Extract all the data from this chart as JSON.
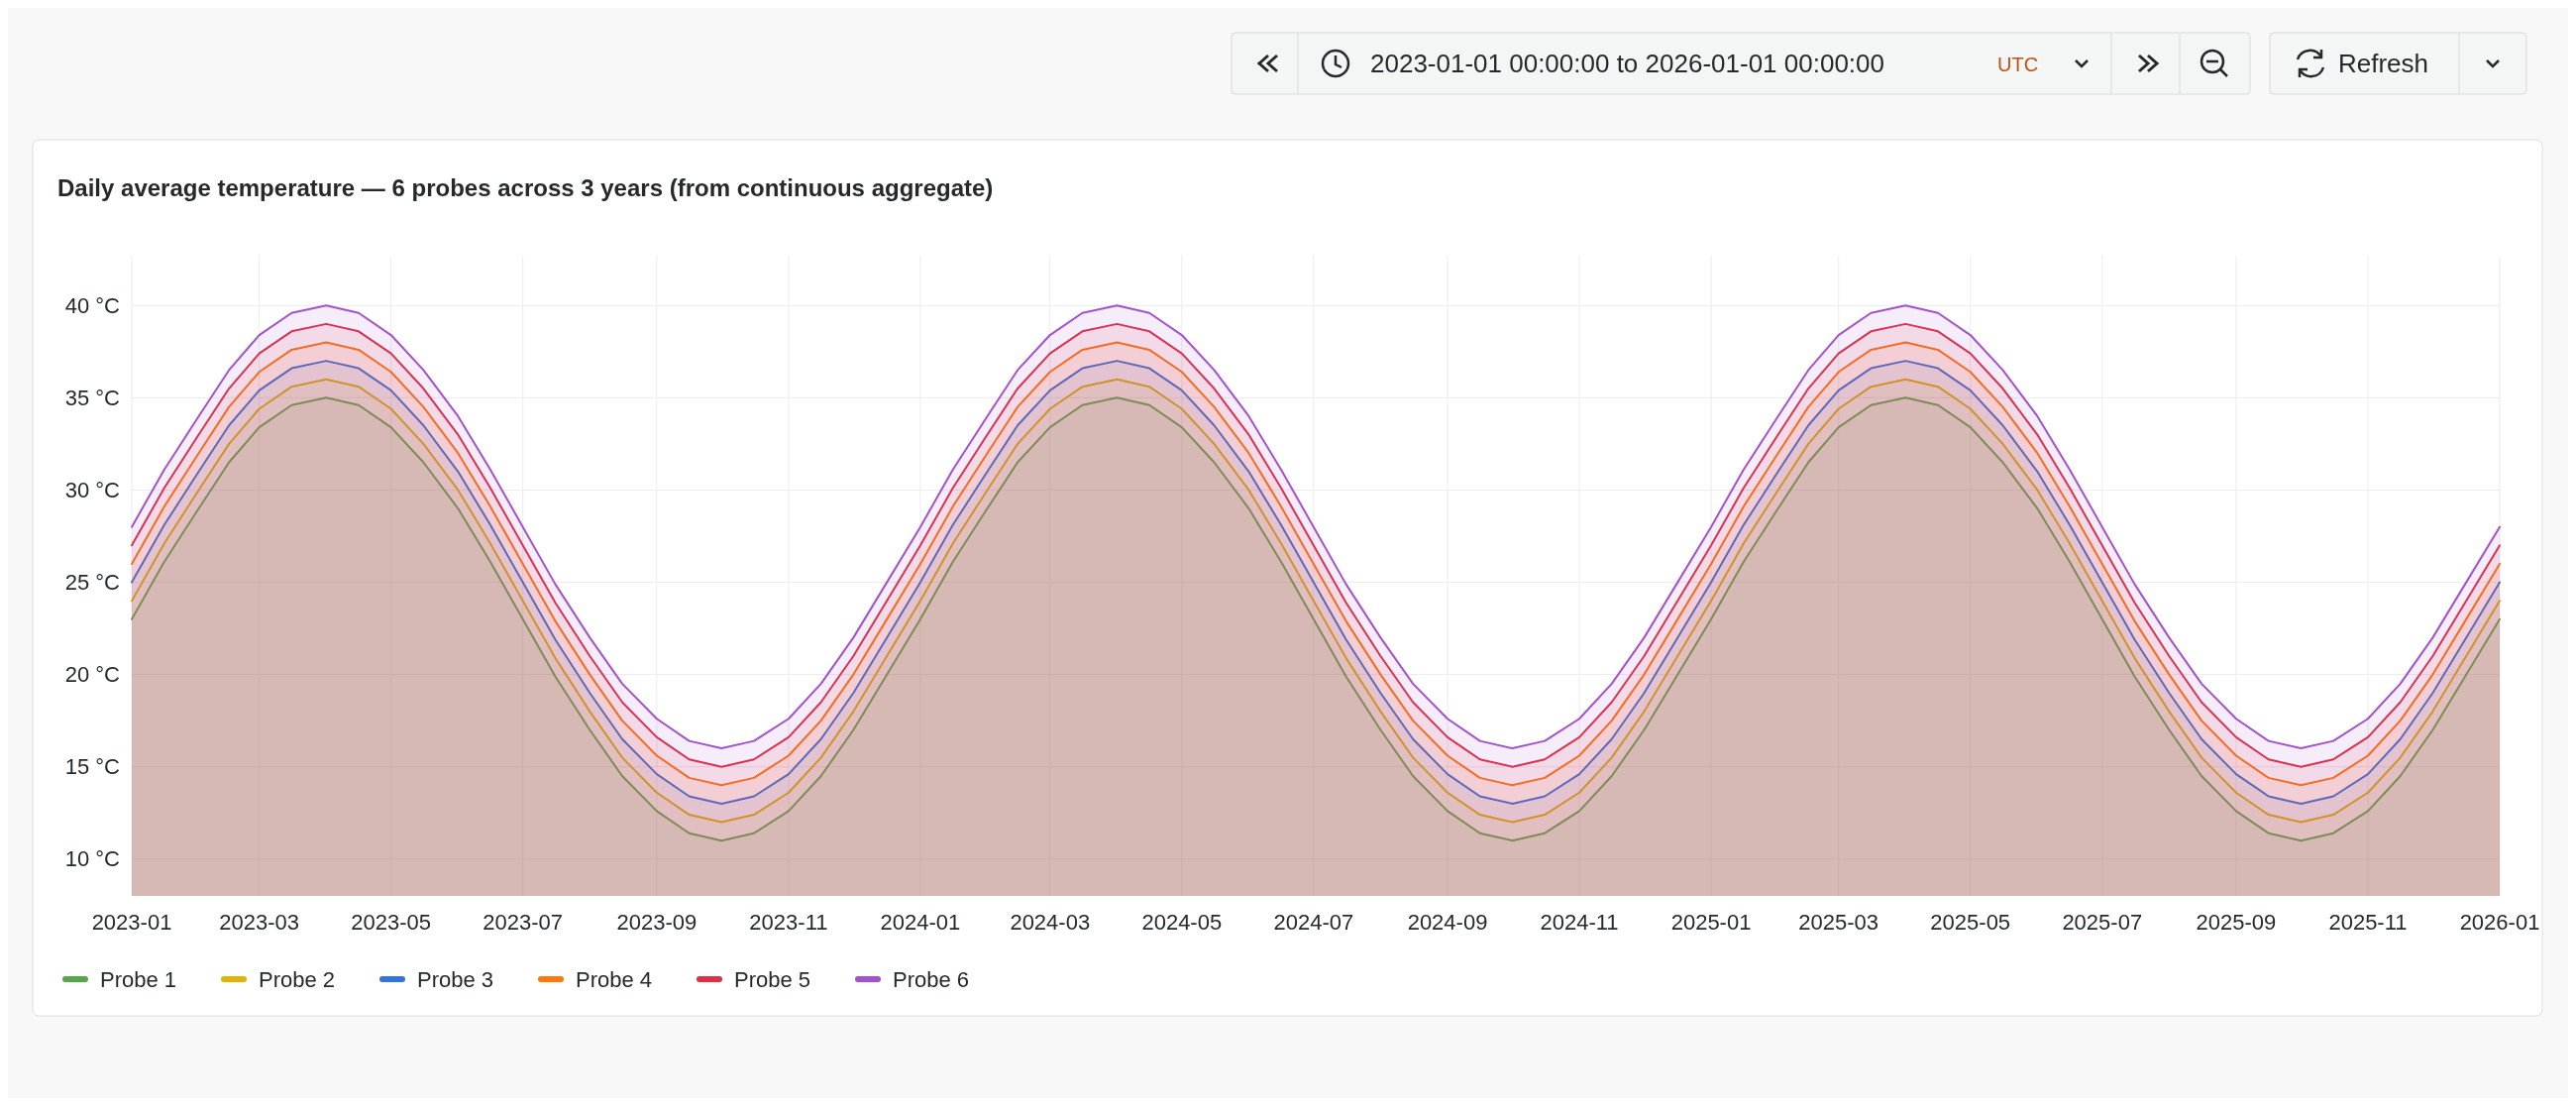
{
  "chart_data": {
    "type": "area",
    "title": "Daily average temperature — 6 probes across 3 years (from continuous aggregate)",
    "annotations": [
      "2023-01-01 00:00:00 to 2026-01-01 00:00:00",
      "UTC",
      "Refresh"
    ],
    "x": [
      "2023-01-01",
      "2023-01-16",
      "2023-02-01",
      "2023-02-15",
      "2023-03-01",
      "2023-03-16",
      "2023-04-01",
      "2023-04-16",
      "2023-05-01",
      "2023-05-16",
      "2023-06-01",
      "2023-06-16",
      "2023-07-01",
      "2023-07-16",
      "2023-08-01",
      "2023-08-16",
      "2023-09-01",
      "2023-09-16",
      "2023-10-01",
      "2023-10-16",
      "2023-11-01",
      "2023-11-16",
      "2023-12-01",
      "2023-12-16",
      "2024-01-01",
      "2024-01-16",
      "2024-02-01",
      "2024-02-15",
      "2024-03-01",
      "2024-03-16",
      "2024-04-01",
      "2024-04-16",
      "2024-05-01",
      "2024-05-16",
      "2024-06-01",
      "2024-06-16",
      "2024-07-01",
      "2024-07-16",
      "2024-08-01",
      "2024-08-16",
      "2024-09-01",
      "2024-09-16",
      "2024-10-01",
      "2024-10-16",
      "2024-11-01",
      "2024-11-16",
      "2024-12-01",
      "2024-12-16",
      "2025-01-01",
      "2025-01-16",
      "2025-02-01",
      "2025-02-15",
      "2025-03-01",
      "2025-03-16",
      "2025-04-01",
      "2025-04-16",
      "2025-05-01",
      "2025-05-16",
      "2025-06-01",
      "2025-06-16",
      "2025-07-01",
      "2025-07-16",
      "2025-08-01",
      "2025-08-16",
      "2025-09-01",
      "2025-09-16",
      "2025-10-01",
      "2025-10-16",
      "2025-11-01",
      "2025-11-16",
      "2025-12-01",
      "2025-12-16",
      "2026-01-01"
    ],
    "series": [
      {
        "name": "Probe 1",
        "color": "#56a64b",
        "values": [
          23,
          26.1,
          29,
          31.5,
          33.4,
          34.6,
          35,
          34.6,
          33.4,
          31.5,
          29,
          26.1,
          23,
          19.9,
          17,
          14.5,
          12.6,
          11.4,
          11,
          11.4,
          12.6,
          14.5,
          17,
          19.9,
          23,
          26.1,
          29,
          31.5,
          33.4,
          34.6,
          35,
          34.6,
          33.4,
          31.5,
          29,
          26.1,
          23,
          19.9,
          17,
          14.5,
          12.6,
          11.4,
          11,
          11.4,
          12.6,
          14.5,
          17,
          19.9,
          23,
          26.1,
          29,
          31.5,
          33.4,
          34.6,
          35,
          34.6,
          33.4,
          31.5,
          29,
          26.1,
          23,
          19.9,
          17,
          14.5,
          12.6,
          11.4,
          11,
          11.4,
          12.6,
          14.5,
          17,
          19.9,
          23
        ]
      },
      {
        "name": "Probe 2",
        "color": "#e0b400",
        "values": [
          24,
          27.1,
          30,
          32.5,
          34.4,
          35.6,
          36,
          35.6,
          34.4,
          32.5,
          30,
          27.1,
          24,
          20.9,
          18,
          15.5,
          13.6,
          12.4,
          12,
          12.4,
          13.6,
          15.5,
          18,
          20.9,
          24,
          27.1,
          30,
          32.5,
          34.4,
          35.6,
          36,
          35.6,
          34.4,
          32.5,
          30,
          27.1,
          24,
          20.9,
          18,
          15.5,
          13.6,
          12.4,
          12,
          12.4,
          13.6,
          15.5,
          18,
          20.9,
          24,
          27.1,
          30,
          32.5,
          34.4,
          35.6,
          36,
          35.6,
          34.4,
          32.5,
          30,
          27.1,
          24,
          20.9,
          18,
          15.5,
          13.6,
          12.4,
          12,
          12.4,
          13.6,
          15.5,
          18,
          20.9,
          24
        ]
      },
      {
        "name": "Probe 3",
        "color": "#3274d9",
        "values": [
          25,
          28.1,
          31,
          33.5,
          35.4,
          36.6,
          37,
          36.6,
          35.4,
          33.5,
          31,
          28.1,
          25,
          21.9,
          19,
          16.5,
          14.6,
          13.4,
          13,
          13.4,
          14.6,
          16.5,
          19,
          21.9,
          25,
          28.1,
          31,
          33.5,
          35.4,
          36.6,
          37,
          36.6,
          35.4,
          33.5,
          31,
          28.1,
          25,
          21.9,
          19,
          16.5,
          14.6,
          13.4,
          13,
          13.4,
          14.6,
          16.5,
          19,
          21.9,
          25,
          28.1,
          31,
          33.5,
          35.4,
          36.6,
          37,
          36.6,
          35.4,
          33.5,
          31,
          28.1,
          25,
          21.9,
          19,
          16.5,
          14.6,
          13.4,
          13,
          13.4,
          14.6,
          16.5,
          19,
          21.9,
          25
        ]
      },
      {
        "name": "Probe 4",
        "color": "#ff780a",
        "values": [
          26,
          29.1,
          32,
          34.5,
          36.4,
          37.6,
          38,
          37.6,
          36.4,
          34.5,
          32,
          29.1,
          26,
          22.9,
          20,
          17.5,
          15.6,
          14.4,
          14,
          14.4,
          15.6,
          17.5,
          20,
          22.9,
          26,
          29.1,
          32,
          34.5,
          36.4,
          37.6,
          38,
          37.6,
          36.4,
          34.5,
          32,
          29.1,
          26,
          22.9,
          20,
          17.5,
          15.6,
          14.4,
          14,
          14.4,
          15.6,
          17.5,
          20,
          22.9,
          26,
          29.1,
          32,
          34.5,
          36.4,
          37.6,
          38,
          37.6,
          36.4,
          34.5,
          32,
          29.1,
          26,
          22.9,
          20,
          17.5,
          15.6,
          14.4,
          14,
          14.4,
          15.6,
          17.5,
          20,
          22.9,
          26
        ]
      },
      {
        "name": "Probe 5",
        "color": "#e02f44",
        "values": [
          27,
          30.1,
          33,
          35.5,
          37.4,
          38.6,
          39,
          38.6,
          37.4,
          35.5,
          33,
          30.1,
          27,
          23.9,
          21,
          18.5,
          16.6,
          15.4,
          15,
          15.4,
          16.6,
          18.5,
          21,
          23.9,
          27,
          30.1,
          33,
          35.5,
          37.4,
          38.6,
          39,
          38.6,
          37.4,
          35.5,
          33,
          30.1,
          27,
          23.9,
          21,
          18.5,
          16.6,
          15.4,
          15,
          15.4,
          16.6,
          18.5,
          21,
          23.9,
          27,
          30.1,
          33,
          35.5,
          37.4,
          38.6,
          39,
          38.6,
          37.4,
          35.5,
          33,
          30.1,
          27,
          23.9,
          21,
          18.5,
          16.6,
          15.4,
          15,
          15.4,
          16.6,
          18.5,
          21,
          23.9,
          27
        ]
      },
      {
        "name": "Probe 6",
        "color": "#a352cc",
        "values": [
          28,
          31.1,
          34,
          36.5,
          38.4,
          39.6,
          40,
          39.6,
          38.4,
          36.5,
          34,
          31.1,
          28,
          24.9,
          22,
          19.5,
          17.6,
          16.4,
          16,
          16.4,
          17.6,
          19.5,
          22,
          24.9,
          28,
          31.1,
          34,
          36.5,
          38.4,
          39.6,
          40,
          39.6,
          38.4,
          36.5,
          34,
          31.1,
          28,
          24.9,
          22,
          19.5,
          17.6,
          16.4,
          16,
          16.4,
          17.6,
          19.5,
          22,
          24.9,
          28,
          31.1,
          34,
          36.5,
          38.4,
          39.6,
          40,
          39.6,
          38.4,
          36.5,
          34,
          31.1,
          28,
          24.9,
          22,
          19.5,
          17.6,
          16.4,
          16,
          16.4,
          17.6,
          19.5,
          22,
          24.9,
          28
        ]
      }
    ],
    "xlim": [
      "2023-01-01",
      "2026-01-01"
    ],
    "xticks": [
      {
        "value": "2023-01-01",
        "label": "2023-01"
      },
      {
        "value": "2023-03-01",
        "label": "2023-03"
      },
      {
        "value": "2023-05-01",
        "label": "2023-05"
      },
      {
        "value": "2023-07-01",
        "label": "2023-07"
      },
      {
        "value": "2023-09-01",
        "label": "2023-09"
      },
      {
        "value": "2023-11-01",
        "label": "2023-11"
      },
      {
        "value": "2024-01-01",
        "label": "2024-01"
      },
      {
        "value": "2024-03-01",
        "label": "2024-03"
      },
      {
        "value": "2024-05-01",
        "label": "2024-05"
      },
      {
        "value": "2024-07-01",
        "label": "2024-07"
      },
      {
        "value": "2024-09-01",
        "label": "2024-09"
      },
      {
        "value": "2024-11-01",
        "label": "2024-11"
      },
      {
        "value": "2025-01-01",
        "label": "2025-01"
      },
      {
        "value": "2025-03-01",
        "label": "2025-03"
      },
      {
        "value": "2025-05-01",
        "label": "2025-05"
      },
      {
        "value": "2025-07-01",
        "label": "2025-07"
      },
      {
        "value": "2025-09-01",
        "label": "2025-09"
      },
      {
        "value": "2025-11-01",
        "label": "2025-11"
      },
      {
        "value": "2026-01-01",
        "label": "2026-01"
      }
    ],
    "ylim": [
      8,
      42.7
    ],
    "yticks": [
      {
        "value": 10,
        "label": "10 °C"
      },
      {
        "value": 15,
        "label": "15 °C"
      },
      {
        "value": 20,
        "label": "20 °C"
      },
      {
        "value": 25,
        "label": "25 °C"
      },
      {
        "value": 30,
        "label": "30 °C"
      },
      {
        "value": 35,
        "label": "35 °C"
      },
      {
        "value": 40,
        "label": "40 °C"
      }
    ],
    "grid": true,
    "legend": "bottom left"
  }
}
